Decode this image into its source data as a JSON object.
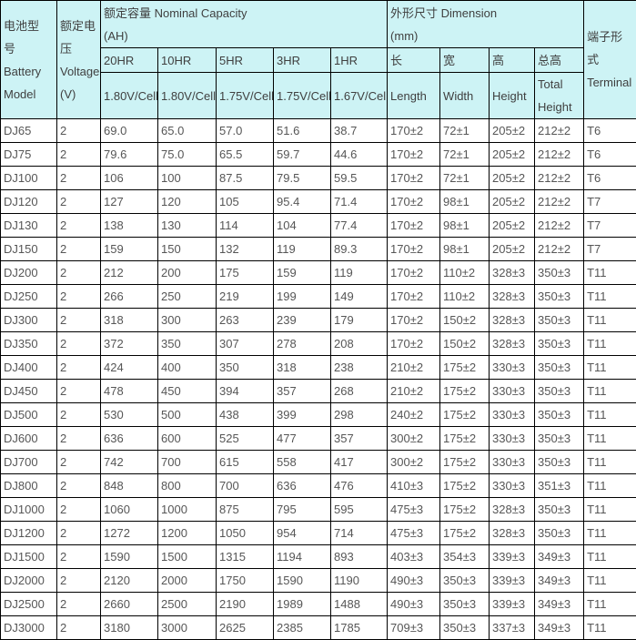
{
  "table": {
    "header": {
      "battery_model": "电池型\n号 Battery\nModel",
      "voltage": "额定电\n压\nVoltage\n(V)",
      "capacity_group": "额定容量 Nominal Capacity\n(AH)",
      "dimension_group": "外形尺寸 Dimension\n(mm)",
      "terminal": "端子形式\nTerminal",
      "capacity_cols": [
        {
          "rate": "20HR",
          "cell_voltage": "1.80V/Cell"
        },
        {
          "rate": "10HR",
          "cell_voltage": "1.80V/Cell"
        },
        {
          "rate": "5HR",
          "cell_voltage": "1.75V/Cell"
        },
        {
          "rate": "3HR",
          "cell_voltage": "1.75V/Cell"
        },
        {
          "rate": "1HR",
          "cell_voltage": "1.67V/Cell"
        }
      ],
      "dimension_cols": [
        {
          "cn": "长",
          "en": "Length"
        },
        {
          "cn": "宽",
          "en": "Width"
        },
        {
          "cn": "高",
          "en": "Height"
        },
        {
          "cn": "总高",
          "en": "Total\nHeight"
        }
      ]
    },
    "column_keys": [
      "model",
      "voltage",
      "cap-20hr",
      "cap-10hr",
      "cap-5hr",
      "cap-3hr",
      "cap-1hr",
      "length",
      "width",
      "height",
      "total-height",
      "terminal"
    ],
    "rows": [
      [
        "DJ65",
        "2",
        "69.0",
        "65.0",
        "57.0",
        "51.6",
        "38.7",
        "170±2",
        "72±1",
        "205±2",
        "212±2",
        "T6"
      ],
      [
        "DJ75",
        "2",
        "79.6",
        "75.0",
        "65.5",
        "59.7",
        "44.6",
        "170±2",
        "72±1",
        "205±2",
        "212±2",
        "T6"
      ],
      [
        "DJ100",
        "2",
        "106",
        "100",
        "87.5",
        "79.5",
        "59.5",
        "170±2",
        "72±1",
        "205±2",
        "212±2",
        "T6"
      ],
      [
        "DJ120",
        "2",
        "127",
        "120",
        "105",
        "95.4",
        "71.4",
        "170±2",
        "98±1",
        "205±2",
        "212±2",
        "T7"
      ],
      [
        "DJ130",
        "2",
        "138",
        "130",
        "114",
        "104",
        "77.4",
        "170±2",
        "98±1",
        "205±2",
        "212±2",
        "T7"
      ],
      [
        "DJ150",
        "2",
        "159",
        "150",
        "132",
        "119",
        "89.3",
        "170±2",
        "98±1",
        "205±2",
        "212±2",
        "T7"
      ],
      [
        "DJ200",
        "2",
        "212",
        "200",
        "175",
        "159",
        "119",
        "170±2",
        "110±2",
        "328±3",
        "350±3",
        "T11"
      ],
      [
        "DJ250",
        "2",
        "266",
        "250",
        "219",
        "199",
        "149",
        "170±2",
        "110±2",
        "328±3",
        "350±3",
        "T11"
      ],
      [
        "DJ300",
        "2",
        "318",
        "300",
        "263",
        "239",
        "179",
        "170±2",
        "150±2",
        "328±3",
        "350±3",
        "T11"
      ],
      [
        "DJ350",
        "2",
        "372",
        "350",
        "307",
        "278",
        "208",
        "170±2",
        "150±2",
        "328±3",
        "350±3",
        "T11"
      ],
      [
        "DJ400",
        "2",
        "424",
        "400",
        "350",
        "318",
        "238",
        "210±2",
        "175±2",
        "330±3",
        "350±3",
        "T11"
      ],
      [
        "DJ450",
        "2",
        "478",
        "450",
        "394",
        "357",
        "268",
        "210±2",
        "175±2",
        "330±3",
        "350±3",
        "T11"
      ],
      [
        "DJ500",
        "2",
        "530",
        "500",
        "438",
        "399",
        "298",
        "240±2",
        "175±2",
        "330±3",
        "350±3",
        "T11"
      ],
      [
        "DJ600",
        "2",
        "636",
        "600",
        "525",
        "477",
        "357",
        "300±2",
        "175±2",
        "330±3",
        "350±3",
        "T11"
      ],
      [
        "DJ700",
        "2",
        "742",
        "700",
        "615",
        "558",
        "417",
        "300±2",
        "175±2",
        "330±3",
        "350±3",
        "T11"
      ],
      [
        "DJ800",
        "2",
        "848",
        "800",
        "700",
        "636",
        "476",
        "410±3",
        "175±2",
        "330±3",
        "351±3",
        "T11"
      ],
      [
        "DJ1000",
        "2",
        "1060",
        "1000",
        "875",
        "795",
        "595",
        "475±3",
        "175±2",
        "328±3",
        "350±3",
        "T11"
      ],
      [
        "DJ1200",
        "2",
        "1272",
        "1200",
        "1050",
        "954",
        "714",
        "475±3",
        "175±2",
        "328±3",
        "350±3",
        "T11"
      ],
      [
        "DJ1500",
        "2",
        "1590",
        "1500",
        "1315",
        "1194",
        "893",
        "403±3",
        "354±3",
        "339±3",
        "349±3",
        "T11"
      ],
      [
        "DJ2000",
        "2",
        "2120",
        "2000",
        "1750",
        "1590",
        "1190",
        "490±3",
        "350±3",
        "339±3",
        "349±3",
        "T11"
      ],
      [
        "DJ2500",
        "2",
        "2660",
        "2500",
        "2190",
        "1989",
        "1488",
        "490±3",
        "350±3",
        "339±3",
        "349±3",
        "T11"
      ],
      [
        "DJ3000",
        "2",
        "3180",
        "3000",
        "2625",
        "2385",
        "1785",
        "709±3",
        "350±3",
        "337±3",
        "349±3",
        "T11"
      ]
    ]
  },
  "colors": {
    "header_background": "#cdf3f5",
    "grid_border": "#000000",
    "header_text": "#3f3f3f",
    "body_text": "#565656",
    "row_background": "#ffffff"
  }
}
